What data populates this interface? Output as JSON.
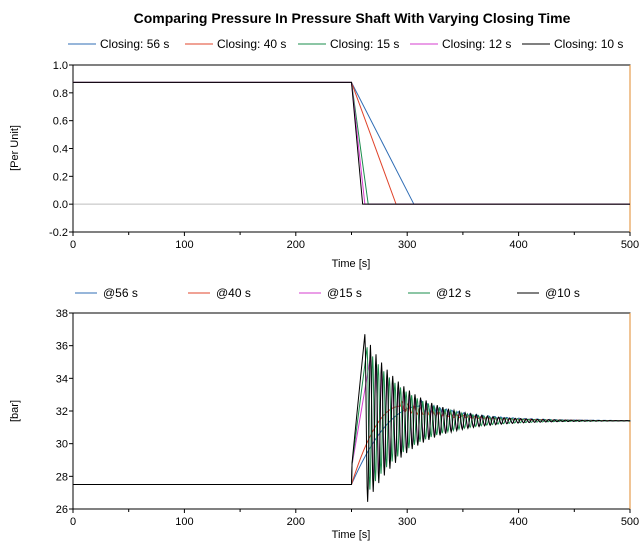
{
  "title": "Comparing Pressure In Pressure Shaft With Varying Closing Time",
  "chart_data": [
    {
      "type": "line",
      "xlabel": "Time [s]",
      "ylabel": "[Per Unit]",
      "xlim": [
        0,
        500
      ],
      "ylim": [
        -0.2,
        1.0
      ],
      "xticks": [
        0,
        100,
        200,
        300,
        400,
        500
      ],
      "yticks": [
        -0.2,
        0.0,
        0.2,
        0.4,
        0.6,
        0.8,
        1.0
      ],
      "ytick_labels": [
        "-0.2",
        "0.0",
        "0.2",
        "0.4",
        "0.6",
        "0.8",
        "1.0"
      ],
      "legend_position": "top",
      "series": [
        {
          "name": "Closing: 56 s",
          "color": "#2f6db5",
          "x": [
            0,
            250,
            306,
            500
          ],
          "y": [
            0.875,
            0.875,
            0.0,
            0.0
          ]
        },
        {
          "name": "Closing: 40 s",
          "color": "#e0442b",
          "x": [
            0,
            250,
            290,
            500
          ],
          "y": [
            0.875,
            0.875,
            0.0,
            0.0
          ]
        },
        {
          "name": "Closing: 15 s",
          "color": "#1a8c4b",
          "x": [
            0,
            250,
            265,
            500
          ],
          "y": [
            0.875,
            0.875,
            0.0,
            0.0
          ]
        },
        {
          "name": "Closing: 12 s",
          "color": "#d63ecf",
          "x": [
            0,
            250,
            262,
            500
          ],
          "y": [
            0.875,
            0.875,
            0.0,
            0.0
          ]
        },
        {
          "name": "Closing: 10 s",
          "color": "#000000",
          "x": [
            0,
            250,
            260,
            500
          ],
          "y": [
            0.875,
            0.875,
            0.0,
            0.0
          ]
        }
      ]
    },
    {
      "type": "line",
      "xlabel": "Time [s]",
      "ylabel": "[bar]",
      "xlim": [
        0,
        500
      ],
      "ylim": [
        26,
        38
      ],
      "xticks": [
        0,
        100,
        200,
        300,
        400,
        500
      ],
      "yticks": [
        26,
        28,
        30,
        32,
        34,
        36,
        38
      ],
      "ytick_labels": [
        "26",
        "28",
        "30",
        "32",
        "34",
        "36",
        "38"
      ],
      "legend_position": "top",
      "initial_value": 27.5,
      "final_value": 31.4,
      "event_time": 250,
      "series": [
        {
          "name": "@56 s",
          "color": "#2f6db5",
          "closing_time": 56
        },
        {
          "name": "@40 s",
          "color": "#e0442b",
          "closing_time": 40
        },
        {
          "name": "@15 s",
          "color": "#d63ecf",
          "closing_time": 15
        },
        {
          "name": "@12 s",
          "color": "#1a8c4b",
          "closing_time": 12
        },
        {
          "name": "@10 s",
          "color": "#000000",
          "closing_time": 10
        }
      ]
    }
  ]
}
